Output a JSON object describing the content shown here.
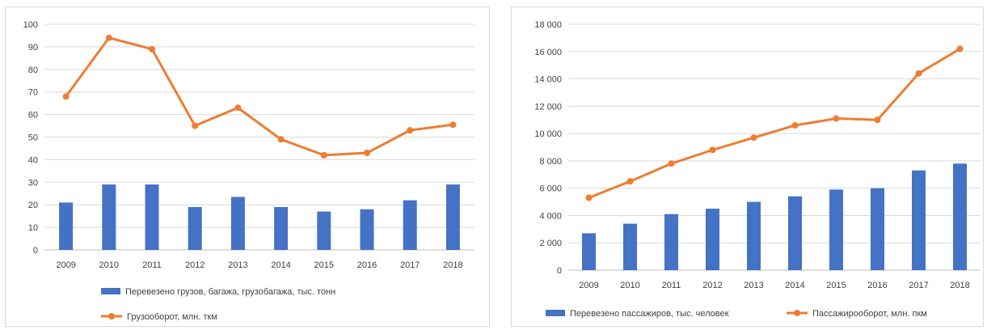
{
  "chart_data": [
    {
      "type": "bar+line",
      "categories": [
        "2009",
        "2010",
        "2011",
        "2012",
        "2013",
        "2014",
        "2015",
        "2016",
        "2017",
        "2018"
      ],
      "ylim": [
        0,
        100
      ],
      "ytick_step": 10,
      "ytick_labels": [
        "0",
        "10",
        "20",
        "30",
        "40",
        "50",
        "60",
        "70",
        "80",
        "90",
        "100"
      ],
      "grid": true,
      "legend_position": "bottom",
      "series": [
        {
          "name": "Перевезено грузов, багажа, грузобагажа, тыс. тонн",
          "kind": "bar",
          "color": "#4472C4",
          "values": [
            21,
            29,
            29,
            19,
            23.5,
            19,
            17,
            18,
            22,
            29
          ]
        },
        {
          "name": "Грузооборот, млн. ткм",
          "kind": "line",
          "color": "#ED7D31",
          "values": [
            68,
            94,
            89,
            55,
            63,
            49,
            42,
            43,
            53,
            55.5
          ]
        }
      ]
    },
    {
      "type": "bar+line",
      "categories": [
        "2009",
        "2010",
        "2011",
        "2012",
        "2013",
        "2014",
        "2015",
        "2016",
        "2017",
        "2018"
      ],
      "ylim": [
        0,
        18000
      ],
      "ytick_step": 2000,
      "ytick_labels": [
        "0",
        "2 000",
        "4 000",
        "6 000",
        "8 000",
        "10 000",
        "12 000",
        "14 000",
        "16 000",
        "18 000"
      ],
      "grid": true,
      "legend_position": "bottom",
      "series": [
        {
          "name": "Перевезено пассажиров, тыс. человек",
          "kind": "bar",
          "color": "#4472C4",
          "values": [
            2700,
            3400,
            4100,
            4500,
            5000,
            5400,
            5900,
            6000,
            7300,
            7800
          ]
        },
        {
          "name": "Пассажирооборот, млн. пкм",
          "kind": "line",
          "color": "#ED7D31",
          "values": [
            5300,
            6500,
            7800,
            8800,
            9700,
            10600,
            11100,
            11000,
            14400,
            16200
          ]
        }
      ]
    }
  ]
}
